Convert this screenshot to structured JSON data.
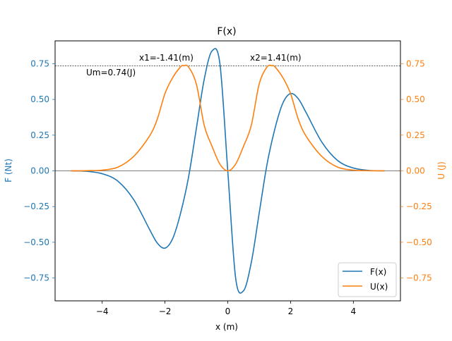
{
  "chart_data": {
    "type": "line",
    "title": "F(x)",
    "xlabel": "x (m)",
    "ylabel_left": "F (Nt)",
    "ylabel_right": "U (J)",
    "xlim": [
      -5.5,
      5.5
    ],
    "ylim": [
      -0.91,
      0.91
    ],
    "x_ticks": [
      -4,
      -2,
      0,
      2,
      4
    ],
    "x_tick_labels": [
      "−4",
      "−2",
      "0",
      "2",
      "4"
    ],
    "y_ticks": [
      0.75,
      0.5,
      0.25,
      0.0,
      -0.25,
      -0.5,
      -0.75
    ],
    "y_tick_labels": [
      "0.75",
      "0.50",
      "0.25",
      "0.00",
      "−0.25",
      "−0.50",
      "−0.75"
    ],
    "series": [
      {
        "name": "F(x)",
        "color": "#1f77b4",
        "x": [
          -5.0,
          -4.5,
          -4.0,
          -3.5,
          -3.0,
          -2.5,
          -2.25,
          -2.0,
          -1.75,
          -1.5,
          -1.25,
          -1.0,
          -0.75,
          -0.5,
          -0.25,
          0.0,
          0.25,
          0.5,
          0.75,
          1.0,
          1.25,
          1.5,
          1.75,
          2.0,
          2.25,
          2.5,
          3.0,
          3.5,
          4.0,
          4.5,
          5.0
        ],
        "y": [
          0.0,
          -0.003,
          -0.02,
          -0.072,
          -0.2,
          -0.406,
          -0.504,
          -0.541,
          -0.472,
          -0.294,
          -0.045,
          0.297,
          0.641,
          0.84,
          0.749,
          0.0,
          -0.749,
          -0.84,
          -0.641,
          -0.297,
          0.045,
          0.294,
          0.472,
          0.541,
          0.504,
          0.406,
          0.2,
          0.072,
          0.02,
          0.003,
          0.0
        ]
      },
      {
        "name": "U(x)",
        "color": "#ff7f0e",
        "x": [
          -5.0,
          -4.5,
          -4.0,
          -3.5,
          -3.0,
          -2.5,
          -2.25,
          -2.0,
          -1.75,
          -1.5,
          -1.41,
          -1.25,
          -1.0,
          -0.75,
          -0.5,
          -0.25,
          0.0,
          0.25,
          0.5,
          0.75,
          1.0,
          1.25,
          1.41,
          1.5,
          1.75,
          2.0,
          2.25,
          2.5,
          3.0,
          3.5,
          4.0,
          4.5,
          5.0
        ],
        "y": [
          0.0,
          0.001,
          0.005,
          0.026,
          0.1,
          0.241,
          0.359,
          0.541,
          0.654,
          0.729,
          0.736,
          0.727,
          0.607,
          0.319,
          0.171,
          0.047,
          0.0,
          0.047,
          0.171,
          0.319,
          0.607,
          0.727,
          0.736,
          0.729,
          0.654,
          0.541,
          0.359,
          0.241,
          0.1,
          0.026,
          0.005,
          0.001,
          0.0
        ]
      }
    ],
    "annotations": {
      "x1_label": "x1=-1.41(m)",
      "x2_label": "x2=1.41(m)",
      "um_label": "Um=0.74(J)",
      "um_value": 0.736
    },
    "legend": {
      "placement": "lower-right",
      "entries": [
        "F(x)",
        "U(x)"
      ]
    },
    "grid": false,
    "colors": {
      "left_axis": "#1f77b4",
      "right_axis": "#ff7f0e"
    }
  }
}
